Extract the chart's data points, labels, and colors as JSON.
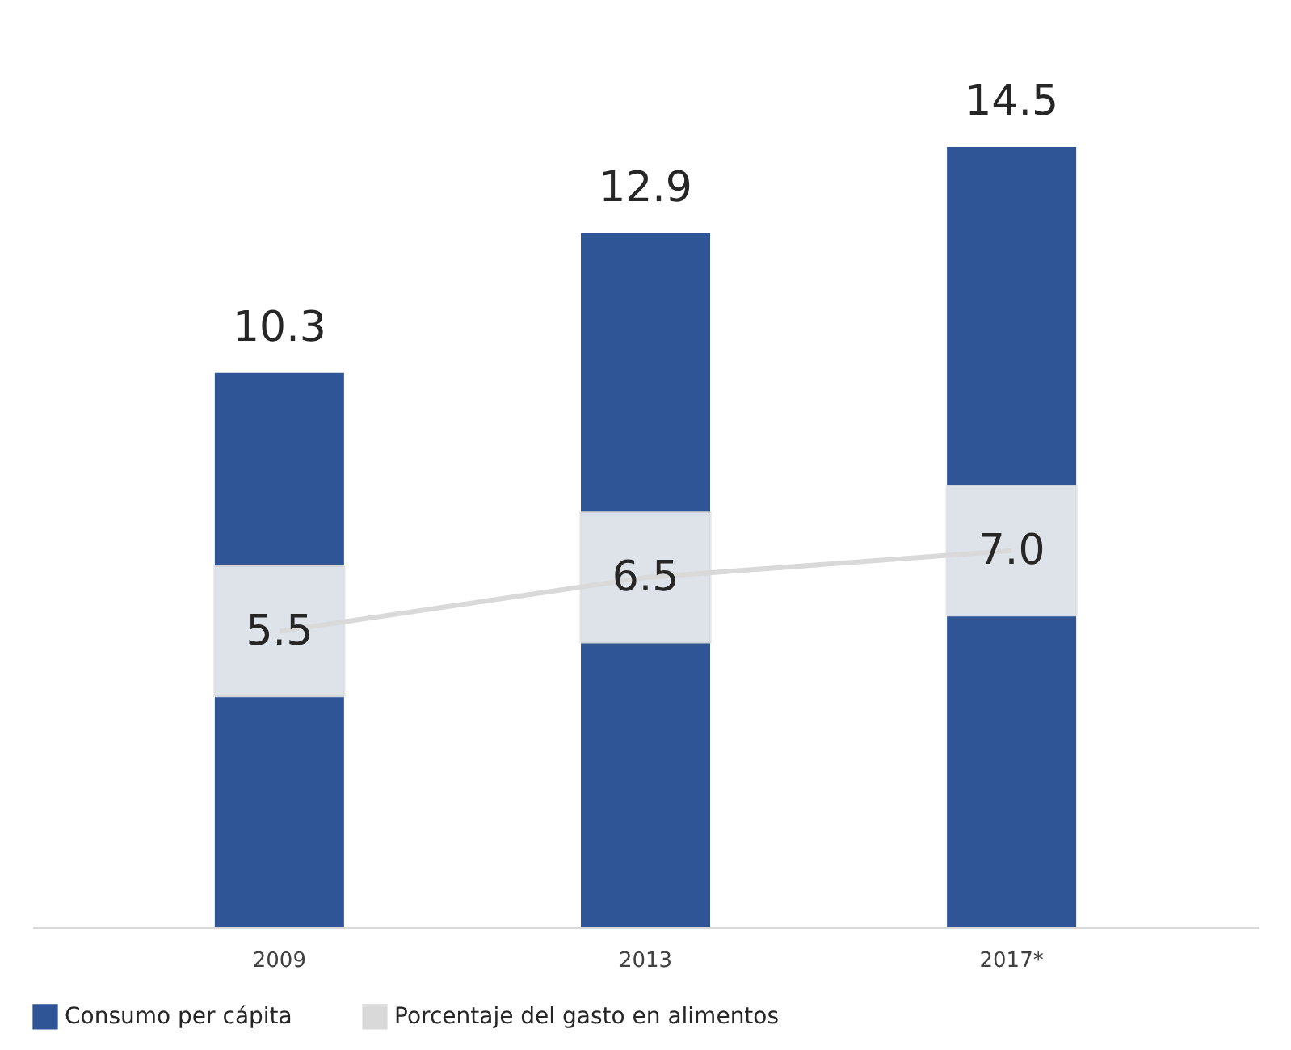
{
  "chart_data": {
    "type": "bar",
    "categories": [
      "2009",
      "2013",
      "2017*"
    ],
    "series": [
      {
        "name": "Consumo per cápita",
        "color": "#2f5597",
        "values": [
          10.3,
          12.9,
          14.5
        ]
      },
      {
        "name": "Porcentaje del gasto en alimentos",
        "type": "line",
        "color": "#d9d9d9",
        "values": [
          5.5,
          6.5,
          7.0
        ],
        "value_labels": [
          "5.5",
          "6.5",
          "7.0"
        ]
      }
    ],
    "tick_labels": "x",
    "data_labels": true,
    "grid": false,
    "legend": "bottom"
  }
}
